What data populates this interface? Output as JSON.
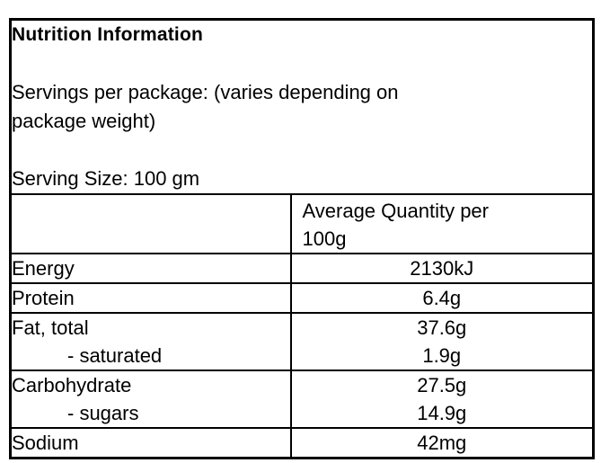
{
  "document": {
    "title": "Nutrition Information",
    "servings": {
      "line1": "Servings per package: (varies depending on",
      "line2": "package weight)"
    },
    "serving_size": "Serving Size: 100 gm",
    "table": {
      "header": {
        "name_column": "",
        "quantity_line1": "Average Quantity per",
        "quantity_line2": "100g"
      },
      "rows": [
        {
          "name": "Energy",
          "value": "2130kJ"
        },
        {
          "name": "Protein",
          "value": "6.4g"
        },
        {
          "name": "Fat, total",
          "value": "37.6g",
          "sub_name": "- saturated",
          "sub_value": "1.9g"
        },
        {
          "name": "Carbohydrate",
          "value": "27.5g",
          "sub_name": "- sugars",
          "sub_value": "14.9g"
        },
        {
          "name": "Sodium",
          "value": "42mg"
        }
      ]
    },
    "colors": {
      "border": "#000000",
      "text": "#000000",
      "background": "#ffffff"
    }
  }
}
